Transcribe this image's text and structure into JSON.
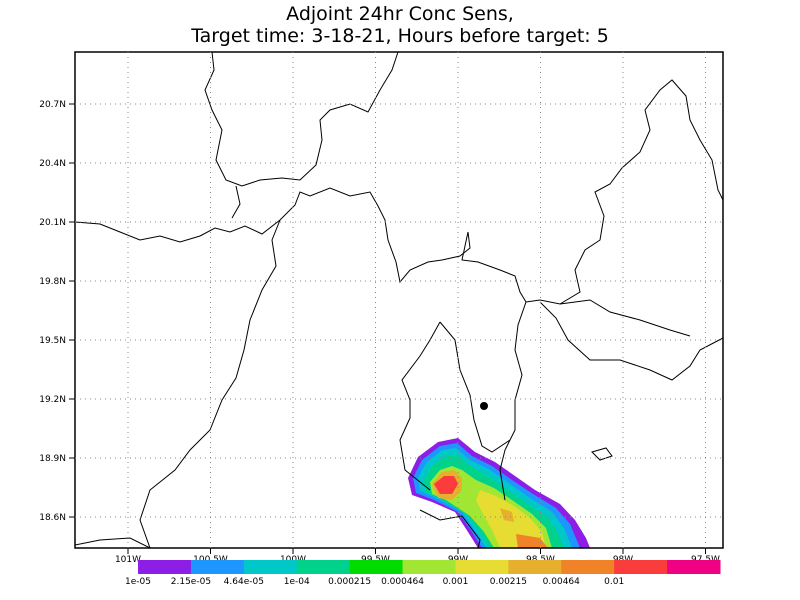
{
  "title_lines": [
    "Adjoint 24hr Conc Sens,",
    "Target time: 3-18-21, Hours before target: 5"
  ],
  "lat_ticks": [
    {
      "value": 20.7,
      "label": "20.7N"
    },
    {
      "value": 20.4,
      "label": "20.4N"
    },
    {
      "value": 20.1,
      "label": "20.1N"
    },
    {
      "value": 19.8,
      "label": "19.8N"
    },
    {
      "value": 19.5,
      "label": "19.5N"
    },
    {
      "value": 19.2,
      "label": "19.2N"
    },
    {
      "value": 18.9,
      "label": "18.9N"
    },
    {
      "value": 18.6,
      "label": "18.6N"
    }
  ],
  "lon_ticks": [
    {
      "value": 101,
      "label": "101W"
    },
    {
      "value": 100.5,
      "label": "100.5W"
    },
    {
      "value": 100,
      "label": "100W"
    },
    {
      "value": 99.5,
      "label": "99.5W"
    },
    {
      "value": 99,
      "label": "99W"
    },
    {
      "value": 98.5,
      "label": "98.5W"
    },
    {
      "value": 98,
      "label": "98W"
    },
    {
      "value": 97.5,
      "label": "97.5W"
    }
  ],
  "colorbar": {
    "colors": [
      "#8c1ee6",
      "#1e96ff",
      "#00c8c8",
      "#00d28c",
      "#00dc00",
      "#a0e632",
      "#e6dc32",
      "#e6af2d",
      "#f08228",
      "#fa3c3c",
      "#f00082"
    ],
    "labels": [
      "1e-05",
      "2.15e-05",
      "4.64e-05",
      "1e-04",
      "0.000215",
      "0.000464",
      "0.001",
      "0.00215",
      "0.00464",
      "0.01"
    ]
  }
}
